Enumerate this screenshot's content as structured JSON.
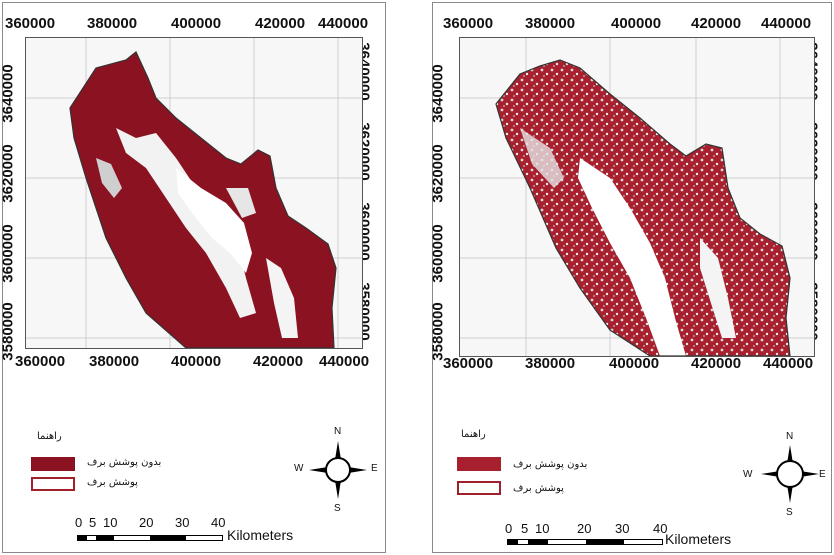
{
  "colors": {
    "no_snow": "#9b1a22",
    "snow": "#ffffff",
    "outline": "#b0303a",
    "grid": "#cccccc",
    "border": "#444444"
  },
  "maps": [
    {
      "x_ticks": [
        "360000",
        "380000",
        "400000",
        "420000",
        "440000"
      ],
      "y_ticks": [
        "3640000",
        "3620000",
        "3600000",
        "3580000"
      ],
      "legend": {
        "title": "راهنما",
        "items": [
          {
            "label": "بدون پوشش برف",
            "color": "#8b1220",
            "fill": true
          },
          {
            "label": "پوشش برف",
            "color": "#ffffff",
            "fill": false
          }
        ]
      },
      "compass": {
        "n": "N",
        "s": "S",
        "e": "E",
        "w": "W"
      },
      "scale": {
        "labels": [
          "0",
          "5",
          "10",
          "20",
          "30",
          "40"
        ],
        "unit": "Kilometers"
      }
    },
    {
      "x_ticks": [
        "360000",
        "380000",
        "400000",
        "420000",
        "440000"
      ],
      "y_ticks": [
        "3640000",
        "3620000",
        "3600000",
        "3580000"
      ],
      "legend": {
        "title": "راهنما",
        "items": [
          {
            "label": "بدون پوشش برف",
            "color": "#a8202e",
            "fill": true
          },
          {
            "label": "پوشش برف",
            "color": "#ffffff",
            "fill": false
          }
        ]
      },
      "compass": {
        "n": "N",
        "s": "S",
        "e": "E",
        "w": "W"
      },
      "scale": {
        "labels": [
          "0",
          "5",
          "10",
          "20",
          "30",
          "40"
        ],
        "unit": "Kilometers"
      }
    }
  ]
}
